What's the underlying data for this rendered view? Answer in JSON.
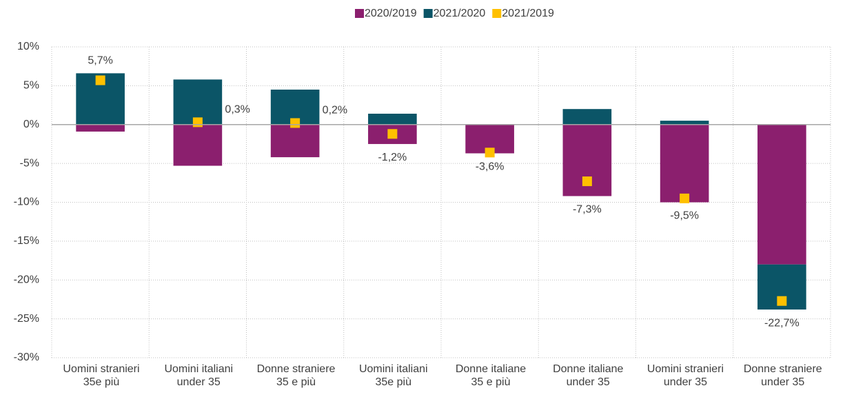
{
  "chart_data": {
    "type": "bar",
    "categories": [
      "Uomini stranieri\n35e più",
      "Uomini italiani\nunder 35",
      "Donne straniere\n35 e più",
      "Uomini italiani\n35e più",
      "Donne italiane\n35 e più",
      "Donne italiane\nunder 35",
      "Uomini stranieri\nunder 35",
      "Donne straniere\nunder 35"
    ],
    "series": [
      {
        "name": "2020/2019",
        "color": "#8b1f6e",
        "values": [
          -0.9,
          -5.3,
          -4.2,
          -2.5,
          -3.7,
          -9.2,
          -10.0,
          -18.0
        ]
      },
      {
        "name": "2021/2020",
        "color": "#0b5567",
        "values": [
          6.6,
          5.8,
          4.5,
          1.4,
          0,
          2.0,
          0.5,
          -5.8
        ]
      },
      {
        "name": "2021/2019",
        "color": "#ffc000",
        "marker": "square",
        "values": [
          5.7,
          0.3,
          0.2,
          -1.2,
          -3.6,
          -7.3,
          -9.5,
          -22.7
        ],
        "value_labels": [
          "5,7%",
          "0,3%",
          "0,2%",
          "-1,2%",
          "-3,6%",
          "-7,3%",
          "-9,5%",
          "-22,7%"
        ]
      }
    ],
    "ylim": [
      -30,
      10
    ],
    "yticks": [
      {
        "value": -30,
        "label": "-30%"
      },
      {
        "value": -25,
        "label": "-25%"
      },
      {
        "value": -20,
        "label": "-20%"
      },
      {
        "value": -15,
        "label": "-15%"
      },
      {
        "value": -10,
        "label": "-10%"
      },
      {
        "value": -5,
        "label": "-5%"
      },
      {
        "value": 0,
        "label": "0%"
      },
      {
        "value": 5,
        "label": "5%"
      },
      {
        "value": 10,
        "label": "10%"
      }
    ],
    "grid": true,
    "legend": "top"
  }
}
